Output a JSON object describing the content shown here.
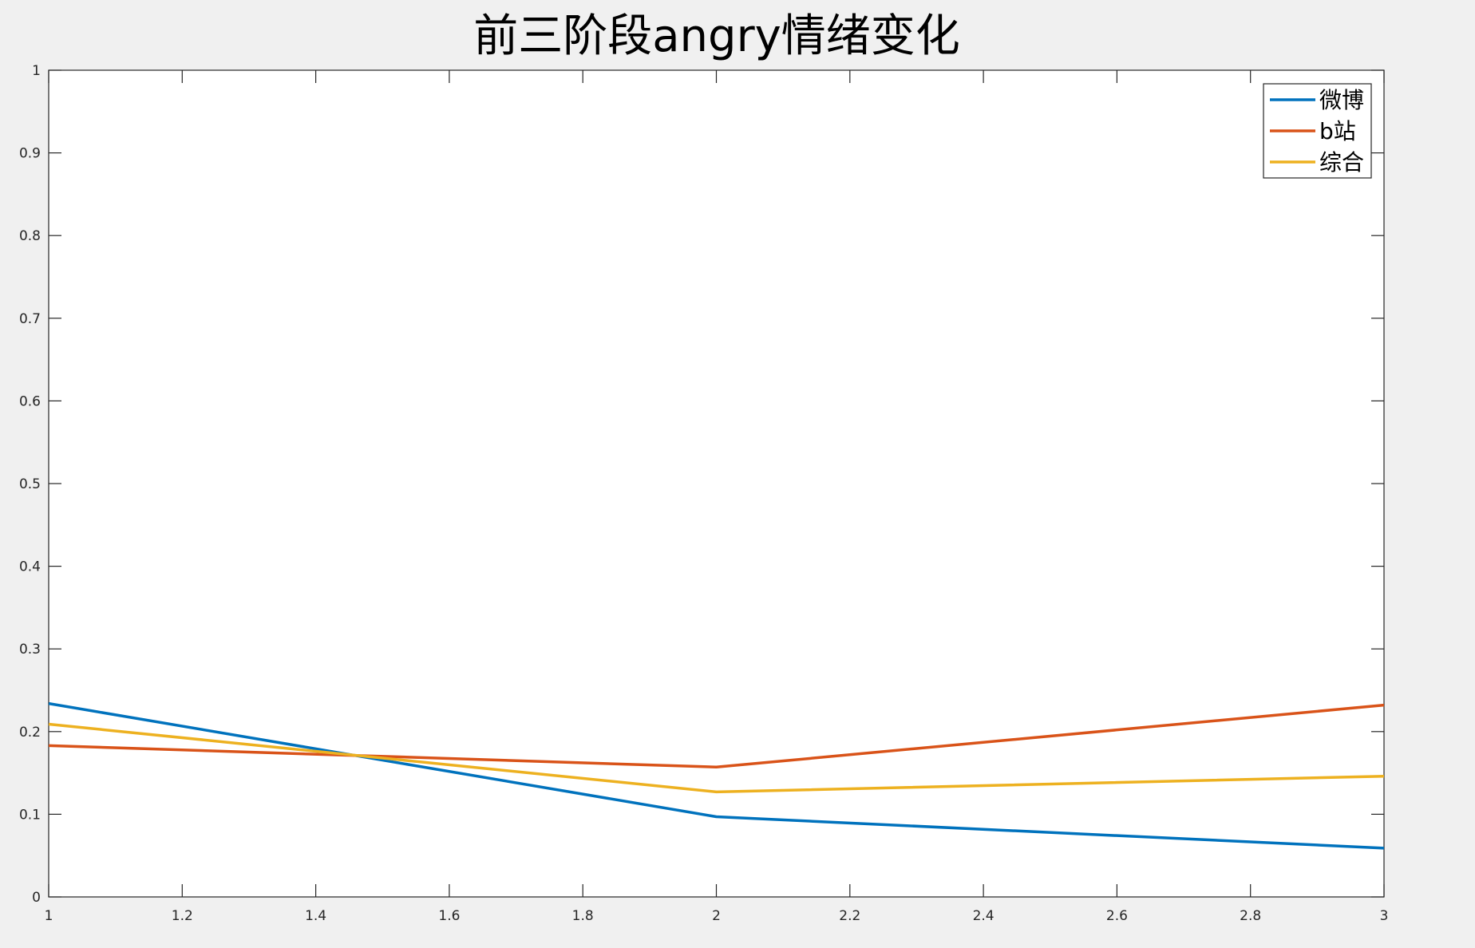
{
  "chart_data": {
    "type": "line",
    "title": "前三阶段angry情绪变化",
    "xlabel": "",
    "ylabel": "",
    "xlim": [
      1,
      3
    ],
    "ylim": [
      0,
      1
    ],
    "xticks": [
      1,
      1.2,
      1.4,
      1.6,
      1.8,
      2,
      2.2,
      2.4,
      2.6,
      2.8,
      3
    ],
    "xtick_labels": [
      "1",
      "1.2",
      "1.4",
      "1.6",
      "1.8",
      "2",
      "2.2",
      "2.4",
      "2.6",
      "2.8",
      "3"
    ],
    "yticks": [
      0,
      0.1,
      0.2,
      0.3,
      0.4,
      0.5,
      0.6,
      0.7,
      0.8,
      0.9,
      1
    ],
    "ytick_labels": [
      "0",
      "0.1",
      "0.2",
      "0.3",
      "0.4",
      "0.5",
      "0.6",
      "0.7",
      "0.8",
      "0.9",
      "1"
    ],
    "grid": false,
    "legend_position": "top-right",
    "x": [
      1,
      2,
      3
    ],
    "series": [
      {
        "name": "微博",
        "color": "#0072bd",
        "values": [
          0.234,
          0.097,
          0.059
        ]
      },
      {
        "name": "b站",
        "color": "#d95319",
        "values": [
          0.183,
          0.157,
          0.232
        ]
      },
      {
        "name": "综合",
        "color": "#edb120",
        "values": [
          0.209,
          0.127,
          0.146
        ]
      }
    ]
  }
}
